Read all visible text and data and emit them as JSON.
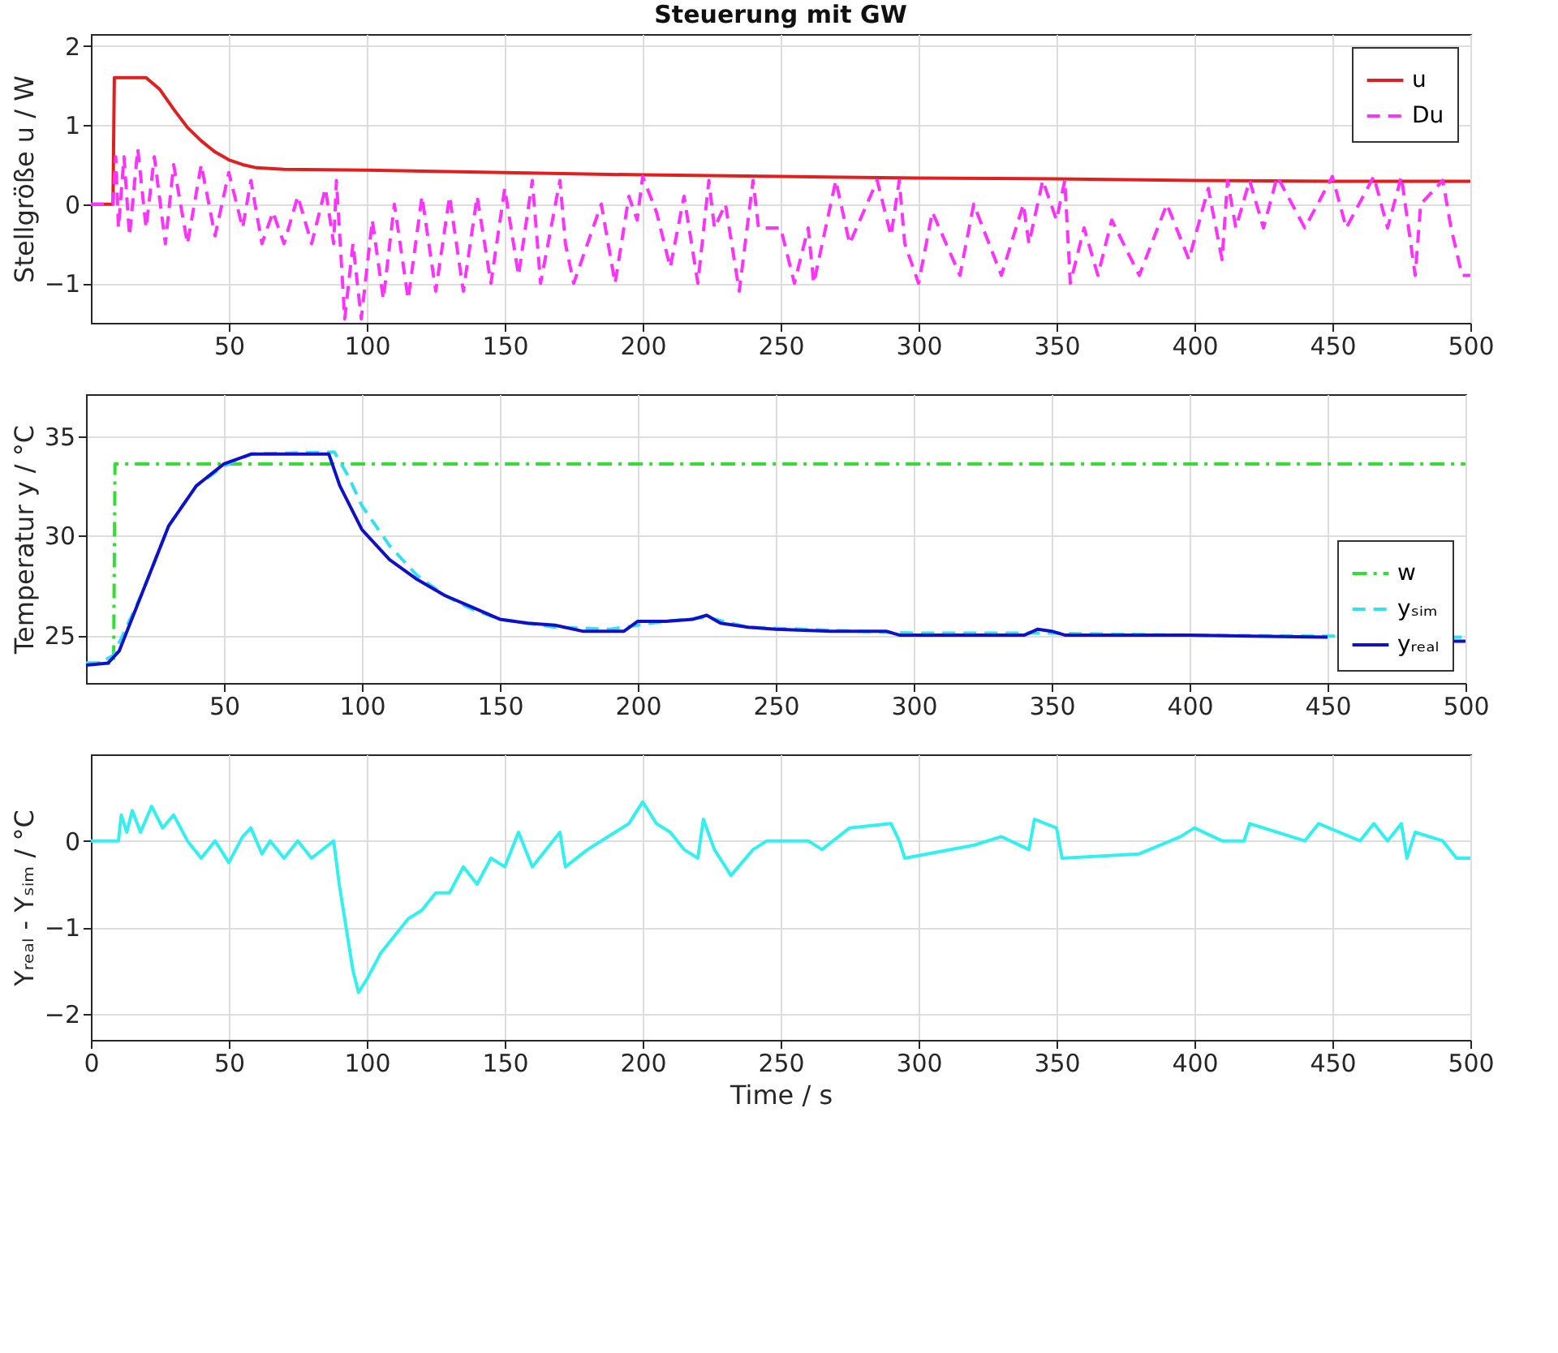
{
  "chart_data": [
    {
      "type": "line",
      "title": "Steuerung mit GW",
      "ylabel": "Stellgröße u / W",
      "xlim": [
        0,
        500
      ],
      "xticks": [
        50,
        100,
        150,
        200,
        250,
        300,
        350,
        400,
        450,
        500
      ],
      "ylim": [
        -1.5,
        2.15
      ],
      "yticks": [
        -1,
        0,
        1,
        2
      ],
      "grid": true,
      "legend": "top right",
      "series": [
        {
          "name": "u",
          "color": "#e02020",
          "line_style": "solid",
          "x": [
            0,
            8,
            8.5,
            20,
            25,
            30,
            35,
            40,
            45,
            50,
            55,
            60,
            70,
            100,
            150,
            200,
            250,
            300,
            350,
            400,
            450,
            500
          ],
          "values": [
            0,
            0,
            1.6,
            1.6,
            1.45,
            1.2,
            0.97,
            0.8,
            0.66,
            0.56,
            0.5,
            0.46,
            0.44,
            0.43,
            0.4,
            0.37,
            0.35,
            0.33,
            0.32,
            0.3,
            0.29,
            0.29
          ]
        },
        {
          "name": "Du",
          "color": "#ff33ff",
          "line_style": "dashed",
          "x": [
            0,
            8,
            9,
            10,
            12,
            14,
            17,
            20,
            23,
            27,
            30,
            35,
            40,
            45,
            50,
            55,
            58,
            62,
            66,
            70,
            75,
            80,
            85,
            88,
            89,
            92,
            95,
            98,
            102,
            106,
            110,
            115,
            120,
            125,
            130,
            135,
            140,
            145,
            150,
            155,
            160,
            163,
            170,
            172,
            175,
            185,
            190,
            195,
            198,
            200,
            205,
            210,
            215,
            220,
            224,
            226,
            230,
            235,
            240,
            242,
            250,
            255,
            260,
            262,
            270,
            275,
            285,
            290,
            293,
            295,
            300,
            305,
            315,
            320,
            330,
            338,
            340,
            345,
            350,
            353,
            355,
            360,
            365,
            370,
            380,
            390,
            398,
            405,
            410,
            412,
            415,
            420,
            425,
            430,
            440,
            450,
            455,
            465,
            470,
            475,
            480,
            482,
            490,
            493,
            497,
            500
          ],
          "values": [
            0,
            0,
            0.6,
            -0.3,
            0.6,
            -0.4,
            0.7,
            -0.3,
            0.6,
            -0.5,
            0.5,
            -0.5,
            0.5,
            -0.4,
            0.4,
            -0.3,
            0.3,
            -0.5,
            -0.1,
            -0.5,
            0.1,
            -0.5,
            0.2,
            -0.5,
            0.3,
            -1.45,
            -0.5,
            -1.45,
            -0.2,
            -1.2,
            0,
            -1.2,
            0.1,
            -1.1,
            0.1,
            -1.1,
            0.1,
            -1,
            0.2,
            -0.9,
            0.3,
            -1,
            0.3,
            -0.5,
            -1,
            0,
            -1,
            0.1,
            -0.2,
            0.35,
            -0.1,
            -0.8,
            0.1,
            -1,
            0.3,
            -0.3,
            0,
            -1.1,
            0.3,
            -0.3,
            -0.3,
            -1,
            -0.3,
            -1,
            0.3,
            -0.5,
            0.3,
            -0.4,
            0.3,
            -0.5,
            -1,
            -0.1,
            -0.9,
            0,
            -0.9,
            0,
            -0.5,
            0.3,
            -0.2,
            0.3,
            -1,
            -0.3,
            -0.9,
            -0.2,
            -0.9,
            0,
            -0.7,
            0.2,
            -0.7,
            0.3,
            -0.3,
            0.3,
            -0.3,
            0.35,
            -0.3,
            0.35,
            -0.3,
            0.35,
            -0.3,
            0.35,
            -0.9,
            0,
            0.3,
            -0.3,
            -0.9,
            -0.9
          ]
        }
      ]
    },
    {
      "type": "line",
      "ylabel": "Temperatur y / °C",
      "xlim": [
        0,
        500
      ],
      "xticks": [
        50,
        100,
        150,
        200,
        250,
        300,
        350,
        400,
        450,
        500
      ],
      "ylim": [
        22.6,
        37.1
      ],
      "yticks": [
        25,
        30,
        35
      ],
      "grid": true,
      "legend": "bottom right",
      "series": [
        {
          "name": "w",
          "color": "#33dd33",
          "line_style": "dashdot",
          "x": [
            0,
            10,
            10.5,
            500
          ],
          "values": [
            23.6,
            23.6,
            33.6,
            33.6
          ]
        },
        {
          "name": "yₛᵢₘ",
          "color": "#33e0f0",
          "line_style": "dashed",
          "x": [
            0,
            5,
            10,
            20,
            30,
            40,
            50,
            60,
            90,
            95,
            100,
            110,
            120,
            130,
            140,
            150,
            170,
            190,
            200,
            210,
            225,
            240,
            300,
            350,
            400,
            500
          ],
          "values": [
            23.6,
            23.6,
            24,
            27,
            30.5,
            32.5,
            33.5,
            34.1,
            34.2,
            33,
            31.5,
            29.5,
            28,
            27,
            26.3,
            25.8,
            25.4,
            25.3,
            25.5,
            25.7,
            25.9,
            25.4,
            25.1,
            25.1,
            25,
            24.9
          ]
        },
        {
          "name": "yᵣₑₐₗ",
          "color": "#1010c8",
          "line_style": "solid",
          "x": [
            0,
            8,
            12,
            20,
            30,
            40,
            50,
            60,
            88,
            92,
            100,
            110,
            120,
            130,
            140,
            150,
            160,
            170,
            180,
            195,
            200,
            210,
            220,
            225,
            230,
            240,
            250,
            270,
            290,
            295,
            340,
            345,
            350,
            355,
            400,
            450,
            490,
            495,
            500
          ],
          "values": [
            23.5,
            23.6,
            24.2,
            27,
            30.5,
            32.5,
            33.6,
            34.1,
            34.1,
            32.5,
            30.3,
            28.8,
            27.8,
            27,
            26.4,
            25.8,
            25.6,
            25.5,
            25.2,
            25.2,
            25.7,
            25.7,
            25.8,
            26,
            25.6,
            25.4,
            25.3,
            25.2,
            25.2,
            25,
            25,
            25.3,
            25.2,
            25,
            25,
            24.9,
            null,
            24.7,
            24.7
          ]
        }
      ]
    },
    {
      "type": "line",
      "xlabel": "Time / s",
      "ylabel": "Yᵣₑₐₗ - Yₛᵢₘ / °C",
      "xlim": [
        0,
        500
      ],
      "xticks": [
        0,
        50,
        100,
        150,
        200,
        250,
        300,
        350,
        400,
        450,
        500
      ],
      "ylim": [
        -2.3,
        1
      ],
      "yticks": [
        -2,
        -1,
        0
      ],
      "grid": true,
      "series": [
        {
          "color": "#33f0f0",
          "line_style": "solid",
          "x": [
            0,
            10,
            11,
            13,
            15,
            18,
            22,
            26,
            30,
            35,
            40,
            45,
            50,
            55,
            58,
            62,
            65,
            70,
            75,
            80,
            88,
            90,
            95,
            97,
            100,
            105,
            110,
            115,
            120,
            125,
            130,
            135,
            140,
            145,
            150,
            155,
            160,
            170,
            172,
            180,
            190,
            195,
            197,
            200,
            205,
            210,
            215,
            220,
            222,
            226,
            230,
            232,
            240,
            245,
            260,
            265,
            275,
            290,
            293,
            295,
            320,
            330,
            340,
            342,
            350,
            352,
            380,
            395,
            400,
            410,
            418,
            420,
            440,
            445,
            460,
            465,
            470,
            475,
            477,
            480,
            490,
            495,
            500
          ],
          "values": [
            0,
            0,
            0.3,
            0.1,
            0.35,
            0.1,
            0.4,
            0.15,
            0.3,
            0,
            -0.2,
            0,
            -0.25,
            0.05,
            0.15,
            -0.15,
            0,
            -0.2,
            0,
            -0.2,
            0,
            -0.5,
            -1.5,
            -1.75,
            -1.6,
            -1.3,
            -1.1,
            -0.9,
            -0.8,
            -0.6,
            -0.6,
            -0.3,
            -0.5,
            -0.2,
            -0.3,
            0.1,
            -0.3,
            0.1,
            -0.3,
            -0.1,
            0.1,
            0.2,
            0.3,
            0.45,
            0.2,
            0.1,
            -0.1,
            -0.2,
            0.25,
            -0.1,
            -0.3,
            -0.4,
            -0.1,
            0,
            0,
            -0.1,
            0.15,
            0.2,
            0,
            -0.2,
            -0.05,
            0.05,
            -0.1,
            0.25,
            0.15,
            -0.2,
            -0.15,
            0.05,
            0.15,
            0,
            0,
            0.2,
            0,
            0.2,
            0,
            0.2,
            0,
            0.2,
            -0.2,
            0.1,
            0,
            -0.2,
            -0.2
          ]
        }
      ]
    }
  ]
}
